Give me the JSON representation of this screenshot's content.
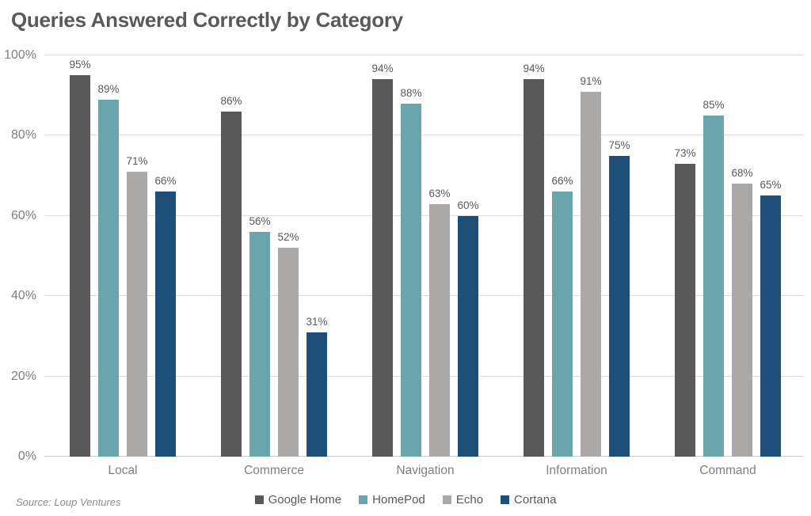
{
  "title": "Queries Answered Correctly by Category",
  "source": "Source: Loup Ventures",
  "chart_data": {
    "type": "bar",
    "title": "Queries Answered Correctly by Category",
    "categories": [
      "Local",
      "Commerce",
      "Navigation",
      "Information",
      "Command"
    ],
    "series": [
      {
        "name": "Google Home",
        "color": "#595959",
        "values": [
          95,
          86,
          94,
          94,
          73
        ]
      },
      {
        "name": "HomePod",
        "color": "#6AA4AC",
        "values": [
          89,
          56,
          88,
          66,
          85
        ]
      },
      {
        "name": "Echo",
        "color": "#ABA8A8",
        "values": [
          71,
          52,
          63,
          91,
          68
        ]
      },
      {
        "name": "Cortana",
        "color": "#1F4E79",
        "values": [
          66,
          31,
          60,
          75,
          65
        ]
      }
    ],
    "value_label_suffix": "%",
    "yticks": [
      {
        "value": 0,
        "label": "0%"
      },
      {
        "value": 20,
        "label": "20%"
      },
      {
        "value": 40,
        "label": "40%"
      },
      {
        "value": 60,
        "label": "60%"
      },
      {
        "value": 80,
        "label": "80%"
      },
      {
        "value": 100,
        "label": "100%"
      }
    ],
    "ylim": [
      0,
      100
    ],
    "grid": true,
    "legend_position": "bottom",
    "source_note": "Source: Loup Ventures"
  }
}
